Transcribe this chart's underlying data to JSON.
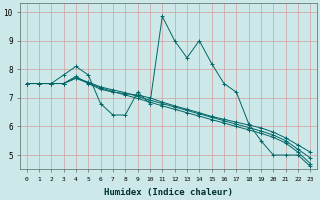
{
  "xlabel": "Humidex (Indice chaleur)",
  "ylabel": "",
  "bg_color": "#cce8e8",
  "grid_color": "#d4a0a0",
  "line_color": "#006666",
  "xlim": [
    -0.5,
    23.5
  ],
  "ylim": [
    4.5,
    10.3
  ],
  "xticks": [
    0,
    1,
    2,
    3,
    4,
    5,
    6,
    7,
    8,
    9,
    10,
    11,
    12,
    13,
    14,
    15,
    16,
    17,
    18,
    19,
    20,
    21,
    22,
    23
  ],
  "yticks": [
    5,
    6,
    7,
    8,
    9,
    10
  ],
  "series": [
    [
      7.5,
      7.5,
      7.5,
      7.8,
      8.1,
      7.8,
      6.8,
      6.4,
      6.4,
      7.2,
      6.8,
      9.85,
      9.0,
      8.4,
      9.0,
      8.2,
      7.5,
      7.2,
      6.1,
      5.5,
      5.0,
      5.0,
      5.0,
      4.6
    ],
    [
      7.5,
      7.5,
      7.5,
      7.5,
      7.75,
      7.5,
      7.3,
      7.2,
      7.15,
      7.1,
      7.0,
      6.85,
      6.72,
      6.6,
      6.48,
      6.35,
      6.25,
      6.15,
      6.05,
      5.95,
      5.8,
      5.6,
      5.35,
      5.1
    ],
    [
      7.5,
      7.5,
      7.5,
      7.5,
      7.7,
      7.55,
      7.38,
      7.28,
      7.18,
      7.05,
      6.92,
      6.8,
      6.68,
      6.56,
      6.44,
      6.32,
      6.2,
      6.08,
      5.96,
      5.84,
      5.7,
      5.5,
      5.2,
      4.9
    ],
    [
      7.5,
      7.5,
      7.5,
      7.5,
      7.68,
      7.52,
      7.35,
      7.22,
      7.1,
      6.98,
      6.85,
      6.72,
      6.6,
      6.48,
      6.36,
      6.24,
      6.12,
      6.0,
      5.88,
      5.76,
      5.62,
      5.42,
      5.1,
      4.7
    ]
  ]
}
